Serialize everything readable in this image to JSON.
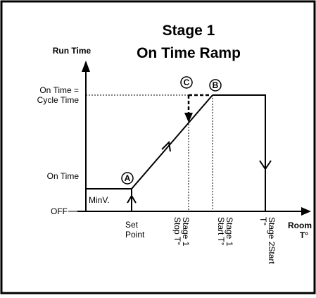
{
  "title": [
    "Stage 1",
    "On Time Ramp"
  ],
  "y_axis": {
    "label": "Run Time",
    "levels": [
      [
        "On Time =",
        "Cycle Time"
      ],
      [
        "On Time"
      ],
      [
        "OFF"
      ]
    ]
  },
  "x_axis": {
    "label": [
      "Room",
      "T°"
    ],
    "points": [
      [
        "Set",
        "Point"
      ],
      [
        "Stage 1",
        "Stop T°"
      ],
      [
        "Stage 1",
        "Start T°"
      ],
      [
        "Stage 2Start",
        "T°"
      ]
    ]
  },
  "box_label": "MinV.",
  "markers": [
    "A",
    "B",
    "C"
  ]
}
